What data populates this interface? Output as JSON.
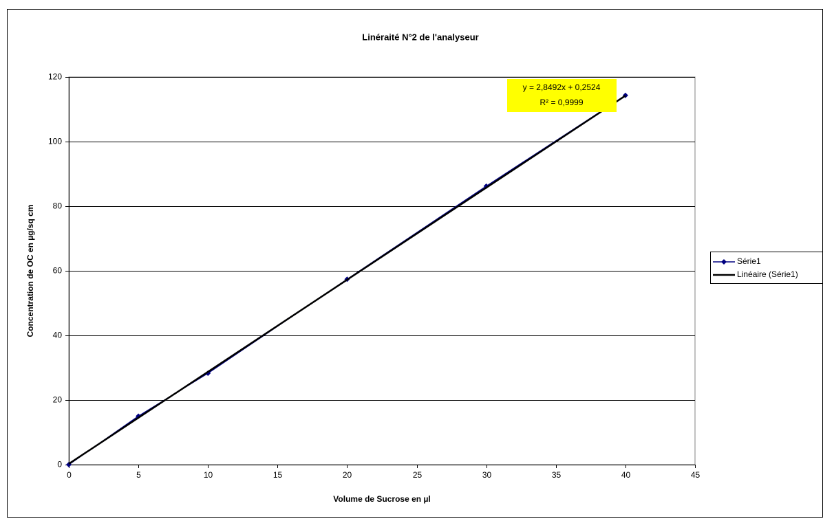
{
  "chart_data": {
    "type": "scatter",
    "title": "Linéraité N°2 de l'analyseur",
    "x_label": "Volume de Sucrose en µl",
    "y_label": "Concentration de OC en µg/sq cm",
    "xlim": [
      0,
      45
    ],
    "xticks": [
      0,
      5,
      10,
      15,
      20,
      25,
      30,
      35,
      40,
      45
    ],
    "ylim": [
      0,
      120
    ],
    "yticks": [
      0,
      20,
      40,
      60,
      80,
      100,
      120
    ],
    "grid": true,
    "legend": "right",
    "series": [
      {
        "name": "Série1",
        "color": "#000080",
        "marker": "diamond",
        "x": [
          0,
          5,
          10,
          20,
          30,
          40
        ],
        "values": [
          0,
          15,
          28.3,
          57.4,
          86.2,
          114.3
        ]
      },
      {
        "name": "Linéaire (Série1)",
        "color": "#000000",
        "marker": "none",
        "x": [
          0,
          40
        ],
        "values": [
          0.25,
          114.22
        ]
      }
    ],
    "annotations": [
      "y = 2,8492x + 0,2524",
      "R² = 0,9999"
    ]
  }
}
